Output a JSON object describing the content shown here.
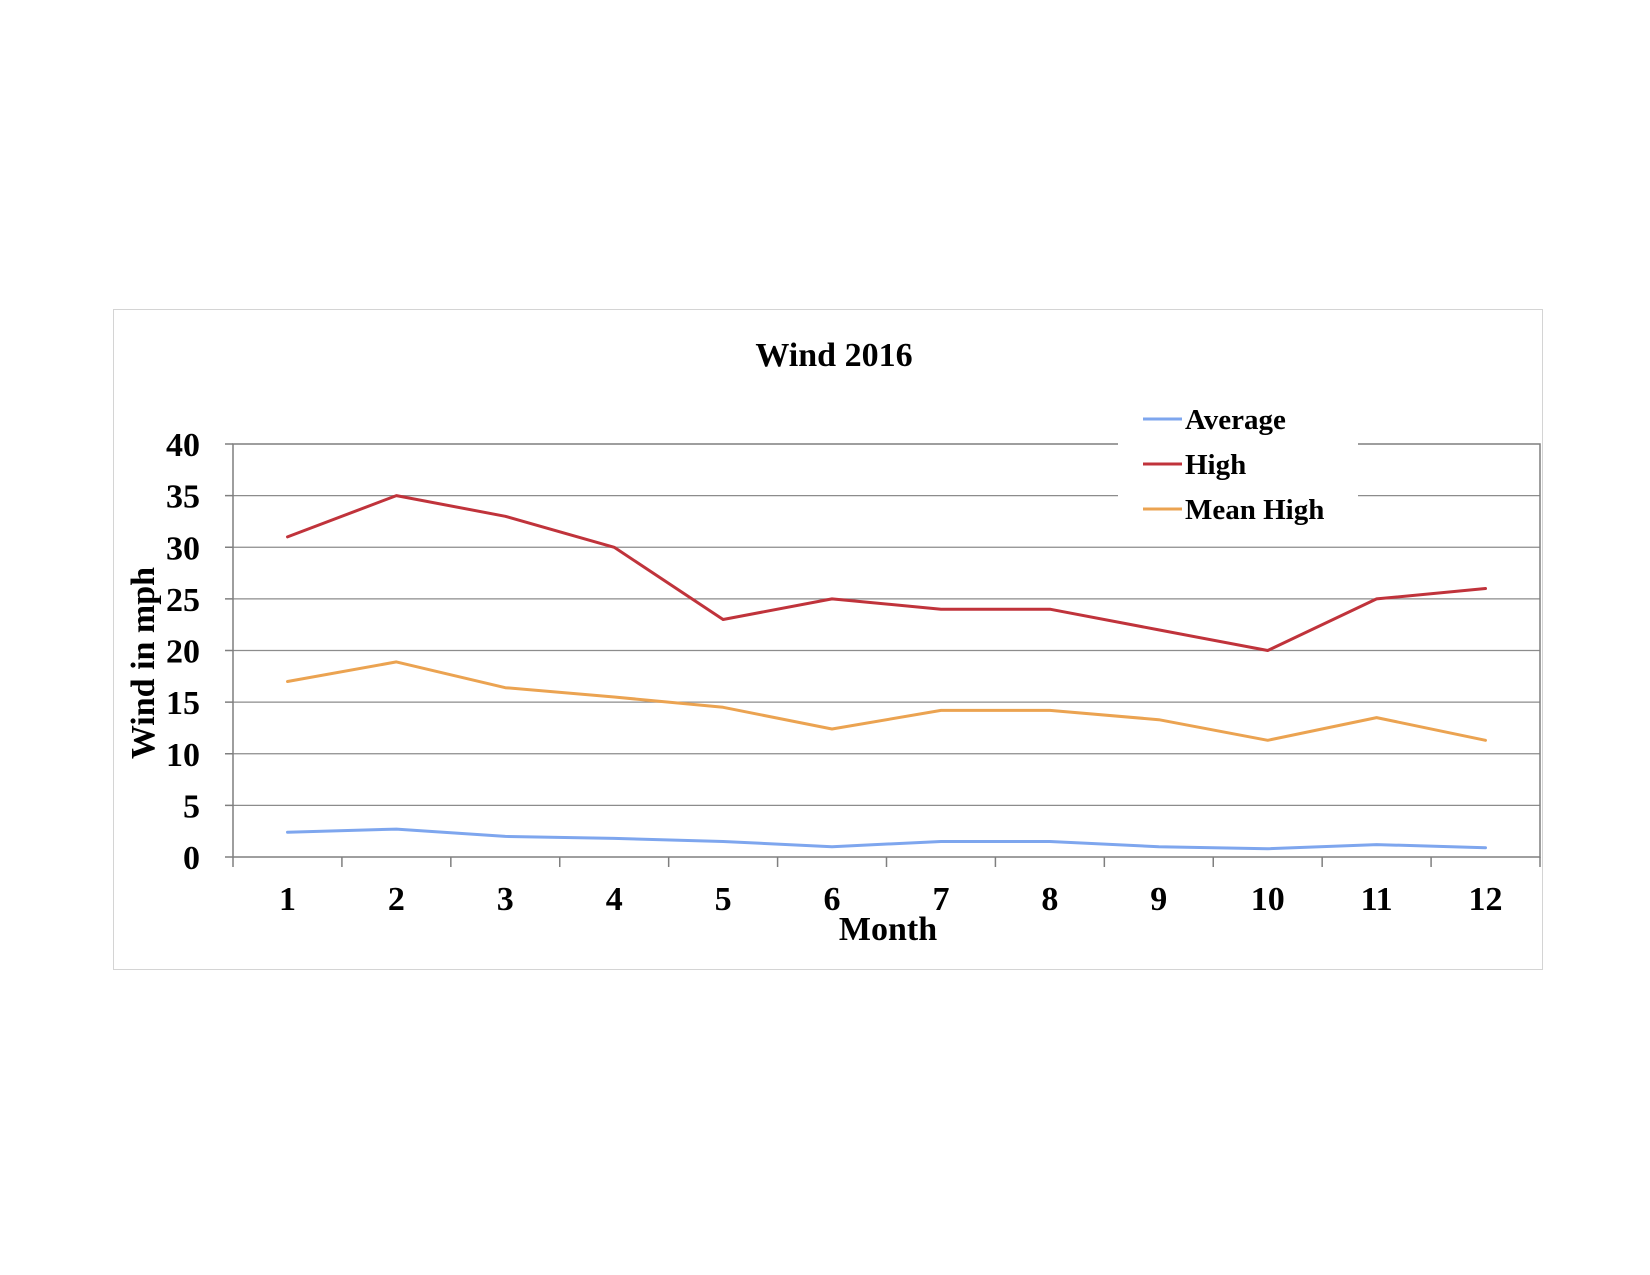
{
  "chart_data": {
    "type": "line",
    "title": "Wind 2016",
    "xlabel": "Month",
    "ylabel": "Wind in mph",
    "categories": [
      "1",
      "2",
      "3",
      "4",
      "5",
      "6",
      "7",
      "8",
      "9",
      "10",
      "11",
      "12"
    ],
    "ylim": [
      0,
      40
    ],
    "yticks": [
      "0",
      "5",
      "10",
      "15",
      "20",
      "25",
      "30",
      "35",
      "40"
    ],
    "grid": true,
    "legend_position": "top-right",
    "series": [
      {
        "name": "Average",
        "color": "#7ea6ee",
        "values": [
          2.4,
          2.7,
          2.0,
          1.8,
          1.5,
          1.0,
          1.5,
          1.5,
          1.0,
          0.8,
          1.2,
          0.9
        ]
      },
      {
        "name": "High",
        "color": "#c0333b",
        "values": [
          31,
          35,
          33,
          30,
          23,
          25,
          24,
          24,
          22,
          20,
          25,
          26
        ]
      },
      {
        "name": "Mean High",
        "color": "#eba351",
        "values": [
          17,
          18.9,
          16.4,
          15.5,
          14.5,
          12.4,
          14.2,
          14.2,
          13.3,
          11.3,
          13.5,
          11.3
        ]
      }
    ]
  }
}
